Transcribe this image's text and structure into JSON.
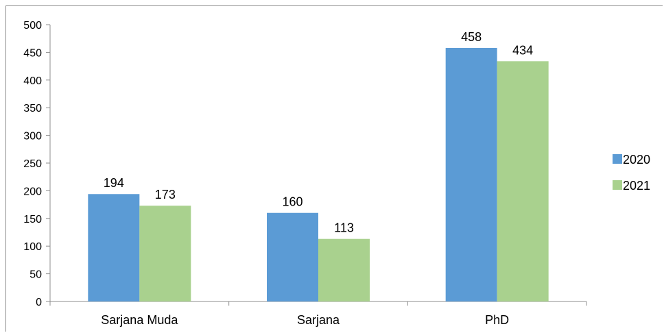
{
  "chart_data": {
    "type": "bar",
    "categories": [
      "Sarjana Muda",
      "Sarjana",
      "PhD"
    ],
    "series": [
      {
        "name": "2020",
        "values": [
          194,
          160,
          458
        ],
        "color": "#5B9BD5"
      },
      {
        "name": "2021",
        "values": [
          173,
          113,
          434
        ],
        "color": "#A9D18E"
      }
    ],
    "ylim": [
      0,
      500
    ],
    "yticks": [
      0,
      50,
      100,
      150,
      200,
      250,
      300,
      350,
      400,
      450,
      500
    ],
    "title": "",
    "xlabel": "",
    "ylabel": "",
    "grid": false,
    "legend": "right",
    "data_labels": true
  }
}
